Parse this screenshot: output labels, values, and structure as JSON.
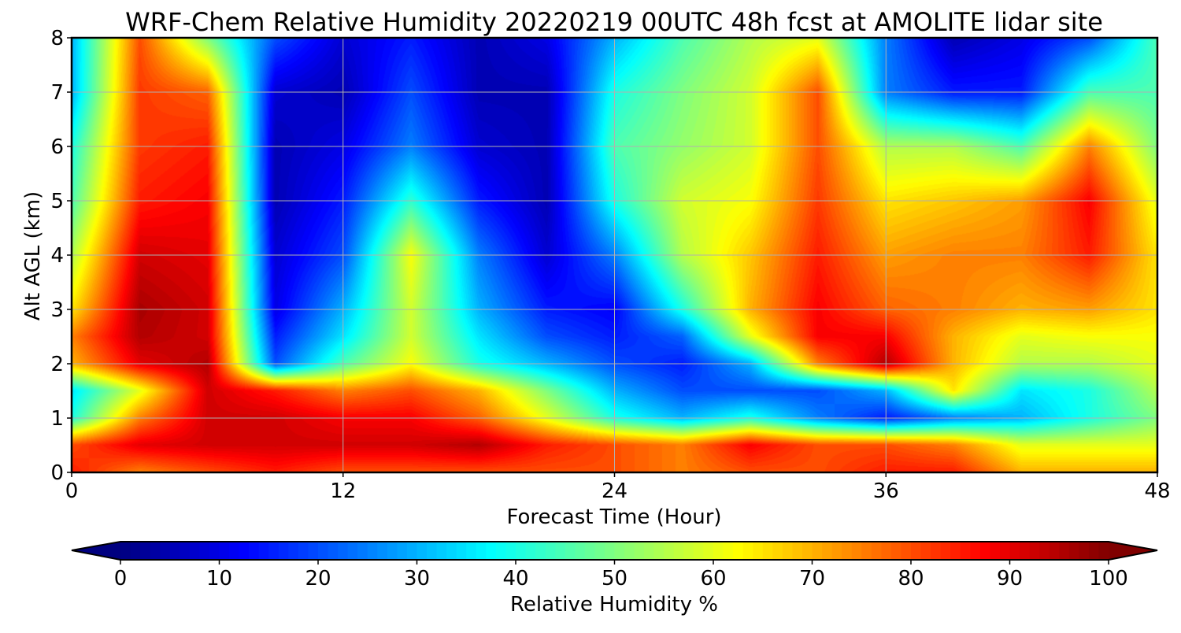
{
  "chart_data": {
    "type": "heatmap",
    "title": "WRF-Chem Relative Humidity 20220219 00UTC 48h fcst at AMOLITE lidar site",
    "xlabel": "Forecast Time (Hour)",
    "ylabel": "Alt AGL (km)",
    "xlim": [
      0,
      48
    ],
    "ylim": [
      0,
      8
    ],
    "x_ticks": [
      0,
      12,
      24,
      36,
      48
    ],
    "y_ticks": [
      0,
      1,
      2,
      3,
      4,
      5,
      6,
      7,
      8
    ],
    "grid": true,
    "colorbar": {
      "label": "Relative Humidity %",
      "orientation": "horizontal",
      "position": "bottom",
      "colormap": "jet",
      "extend": "both",
      "range": [
        0,
        100
      ],
      "ticks": [
        0,
        10,
        20,
        30,
        40,
        50,
        60,
        70,
        80,
        90,
        100
      ]
    },
    "x": [
      0,
      3,
      6,
      9,
      12,
      15,
      18,
      21,
      24,
      27,
      30,
      33,
      36,
      39,
      42,
      45,
      48
    ],
    "y": [
      0,
      0.5,
      1,
      1.5,
      2,
      2.5,
      3,
      4,
      5,
      6,
      7,
      8
    ],
    "values": [
      [
        85,
        75,
        80,
        85,
        80,
        80,
        80,
        80,
        80,
        75,
        80,
        80,
        85,
        85,
        70,
        70,
        70
      ],
      [
        80,
        90,
        92,
        92,
        92,
        92,
        95,
        85,
        80,
        75,
        88,
        80,
        80,
        75,
        60,
        60,
        60
      ],
      [
        40,
        75,
        92,
        92,
        88,
        88,
        78,
        60,
        40,
        30,
        40,
        25,
        15,
        25,
        30,
        40,
        50
      ],
      [
        35,
        60,
        92,
        85,
        75,
        80,
        70,
        50,
        30,
        20,
        20,
        20,
        30,
        65,
        35,
        40,
        55
      ],
      [
        70,
        90,
        95,
        20,
        45,
        62,
        40,
        30,
        20,
        15,
        30,
        75,
        95,
        70,
        55,
        55,
        60
      ],
      [
        75,
        95,
        92,
        15,
        35,
        58,
        35,
        20,
        15,
        22,
        60,
        88,
        88,
        70,
        60,
        62,
        62
      ],
      [
        65,
        96,
        92,
        10,
        30,
        58,
        30,
        15,
        12,
        40,
        70,
        88,
        78,
        75,
        70,
        72,
        65
      ],
      [
        55,
        92,
        90,
        8,
        20,
        62,
        25,
        8,
        25,
        55,
        68,
        85,
        72,
        75,
        75,
        85,
        65
      ],
      [
        45,
        85,
        88,
        5,
        15,
        42,
        15,
        5,
        40,
        58,
        62,
        82,
        65,
        68,
        72,
        88,
        60
      ],
      [
        40,
        82,
        85,
        5,
        10,
        25,
        8,
        5,
        45,
        52,
        58,
        80,
        55,
        55,
        45,
        75,
        50
      ],
      [
        30,
        82,
        78,
        8,
        5,
        20,
        5,
        5,
        40,
        50,
        58,
        80,
        25,
        15,
        15,
        45,
        45
      ],
      [
        30,
        80,
        50,
        20,
        8,
        15,
        5,
        10,
        30,
        45,
        55,
        60,
        25,
        5,
        10,
        20,
        45
      ]
    ]
  }
}
